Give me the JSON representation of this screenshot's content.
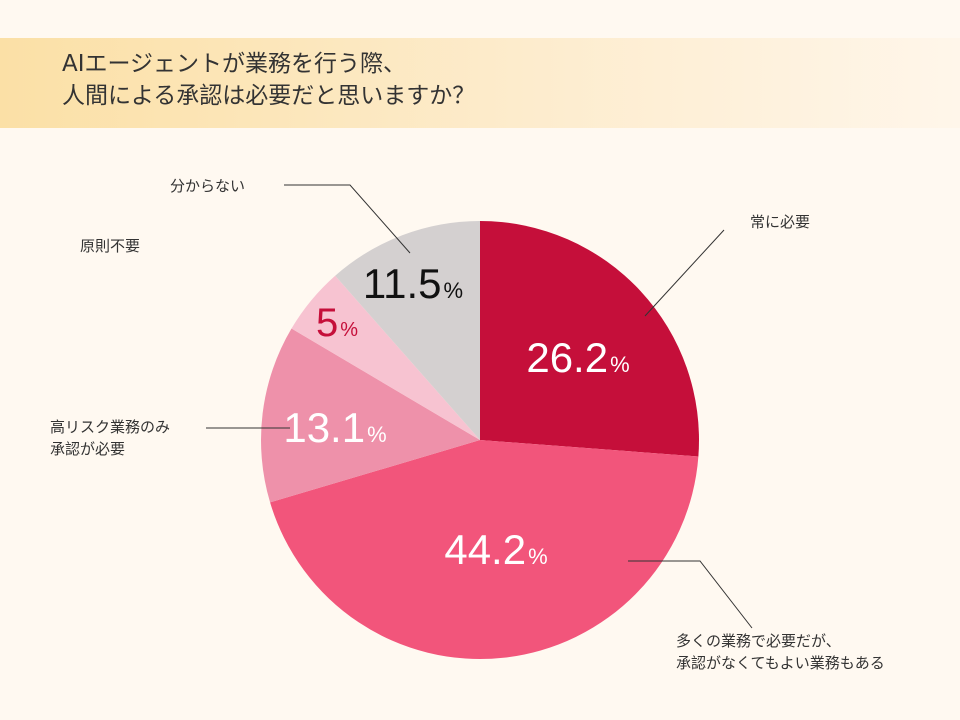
{
  "title": {
    "line1": "AIエージェントが業務を行う際、",
    "line2": "人間による承認は必要だと思いますか？"
  },
  "colors": {
    "always": "#c50f3a",
    "many": "#f2557b",
    "high_risk": "#ee91aa",
    "not_needed": "#f7c3d1",
    "unknown": "#d4d0d0",
    "background": "#fff9f1"
  },
  "callouts": {
    "always": "常に必要",
    "many": [
      "多くの業務で必要だが、",
      "承認がなくてもよい業務もある"
    ],
    "high_risk": [
      "高リスク業務のみ",
      "承認が必要"
    ],
    "not_needed": "原則不要",
    "unknown": "分からない"
  },
  "chart_data": {
    "type": "pie",
    "title": "AIエージェントが業務を行う際、人間による承認は必要だと思いますか？",
    "unit": "%",
    "start_angle": "12 o'clock",
    "direction": "clockwise",
    "slices": [
      {
        "label": "常に必要",
        "value": 26.2,
        "label_text": "26.2",
        "color": "#c50f3a"
      },
      {
        "label": "多くの業務で必要だが、承認がなくてもよい業務もある",
        "value": 44.2,
        "label_text": "44.2",
        "color": "#f2557b"
      },
      {
        "label": "高リスク業務のみ承認が必要",
        "value": 13.1,
        "label_text": "13.1",
        "color": "#ee91aa"
      },
      {
        "label": "原則不要",
        "value": 5,
        "label_text": "5",
        "color": "#f7c3d1"
      },
      {
        "label": "分からない",
        "value": 11.5,
        "label_text": "11.5",
        "color": "#d4d0d0"
      }
    ]
  }
}
